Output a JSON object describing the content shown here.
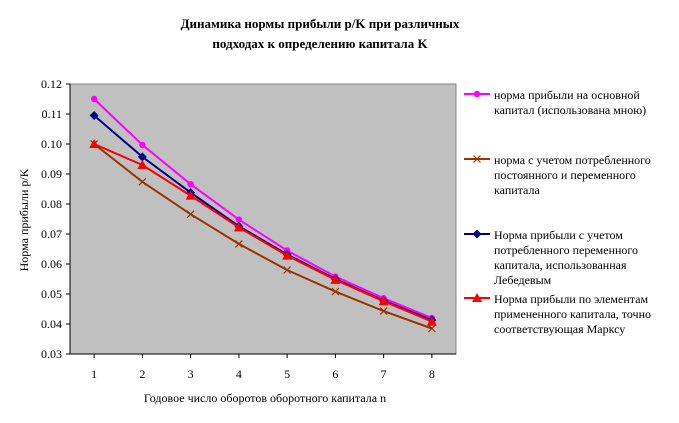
{
  "chart_data": {
    "type": "line",
    "title_line1": "Динамика нормы прибыли p/K при различных",
    "title_line2": "подходах к определению капитала K",
    "xlabel": "Годовое число оборотов оборотного капитала n",
    "ylabel": "Норма прибыли  p/K",
    "x": [
      1,
      2,
      3,
      4,
      5,
      6,
      7,
      8
    ],
    "x_tick_labels": [
      "1",
      "2",
      "3",
      "4",
      "5",
      "6",
      "7",
      "8"
    ],
    "y_tick_labels": [
      "0.03",
      "0.04",
      "0.05",
      "0.06",
      "0.07",
      "0.08",
      "0.09",
      "0.10",
      "0.11",
      "0.12"
    ],
    "ylim": [
      0.03,
      0.12
    ],
    "y_step": 0.01,
    "grid": false,
    "plot_background": "#c0c0c0",
    "legend_position": "right",
    "series": [
      {
        "name_lines": [
          "норма прибыли на основной",
          "капитал (использована мною)"
        ],
        "color": "#ff00ff",
        "marker": "circle",
        "values": [
          0.115,
          0.0997,
          0.0866,
          0.0748,
          0.0645,
          0.0558,
          0.0486,
          0.042
        ]
      },
      {
        "name_lines": [
          "норма с учетом потребленного",
          "постоянного и переменного",
          "капитала"
        ],
        "color": "#993300",
        "marker": "x",
        "values": [
          0.1,
          0.0874,
          0.0766,
          0.0667,
          0.058,
          0.0508,
          0.0443,
          0.0385
        ]
      },
      {
        "name_lines": [
          "Норма прибыли с учетом",
          "потребленного переменного",
          "капитала, использованная",
          "Лебедевым"
        ],
        "color": "#000080",
        "marker": "diamond",
        "values": [
          0.1095,
          0.0957,
          0.0838,
          0.0726,
          0.0632,
          0.055,
          0.0478,
          0.0413
        ]
      },
      {
        "name_lines": [
          "Норма прибыли по элементам",
          "примененного капитала, точно",
          "соответствующая Марксу"
        ],
        "color": "#ff0000",
        "marker": "triangle",
        "values": [
          0.1,
          0.093,
          0.0828,
          0.0722,
          0.0628,
          0.0547,
          0.0476,
          0.0408
        ]
      }
    ]
  }
}
